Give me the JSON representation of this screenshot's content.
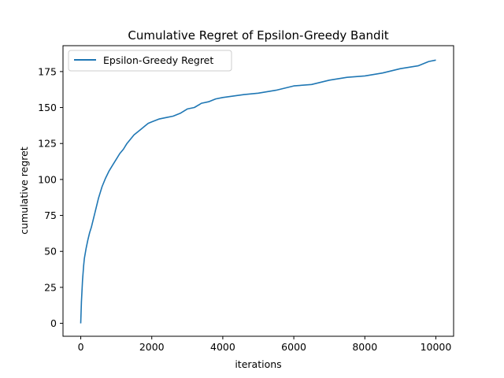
{
  "chart_data": {
    "type": "line",
    "title": "Cumulative Regret of Epsilon-Greedy Bandit",
    "xlabel": "iterations",
    "ylabel": "cumulative regret",
    "xlim": [
      -500,
      10500
    ],
    "ylim": [
      -9,
      193
    ],
    "xticks": [
      0,
      2000,
      4000,
      6000,
      8000,
      10000
    ],
    "yticks": [
      0,
      25,
      50,
      75,
      100,
      125,
      150,
      175
    ],
    "legend": "top-left",
    "grid": false,
    "series": [
      {
        "name": "Epsilon-Greedy Regret",
        "color": "#1f77b4",
        "x": [
          0,
          20,
          50,
          80,
          100,
          150,
          200,
          250,
          300,
          400,
          500,
          600,
          700,
          800,
          900,
          1000,
          1100,
          1200,
          1300,
          1400,
          1500,
          1600,
          1700,
          1800,
          1900,
          2000,
          2200,
          2400,
          2600,
          2800,
          3000,
          3200,
          3400,
          3600,
          3800,
          4000,
          4300,
          4600,
          5000,
          5500,
          6000,
          6500,
          7000,
          7500,
          8000,
          8500,
          9000,
          9500,
          9800,
          10000
        ],
        "y": [
          0,
          15,
          30,
          40,
          45,
          52,
          58,
          63,
          67,
          77,
          87,
          95,
          101,
          106,
          110,
          114,
          118,
          121,
          125,
          128,
          131,
          133,
          135,
          137,
          139,
          140,
          142,
          143,
          144,
          146,
          149,
          150,
          153,
          154,
          156,
          157,
          158,
          159,
          160,
          162,
          165,
          166,
          169,
          171,
          172,
          174,
          177,
          179,
          182,
          183
        ]
      }
    ]
  }
}
